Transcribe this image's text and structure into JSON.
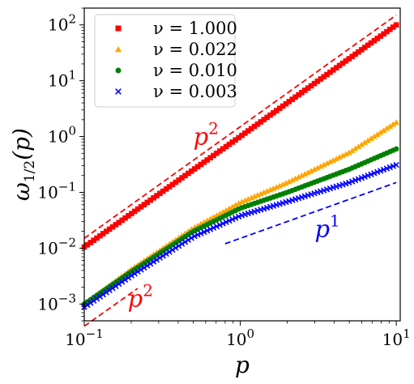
{
  "chart_data": {
    "type": "scatter",
    "xscale": "log",
    "yscale": "log",
    "xlim": [
      0.1,
      10.6
    ],
    "ylim": [
      0.0005,
      200
    ],
    "xlabel": "p",
    "ylabel": "ω1/2(p)",
    "grid": false,
    "legend_position": "top-left",
    "xticks": [
      {
        "value": 0.1,
        "base": "10",
        "exp": "−1"
      },
      {
        "value": 1,
        "base": "10",
        "exp": "0"
      },
      {
        "value": 10,
        "base": "10",
        "exp": "1"
      }
    ],
    "yticks": [
      {
        "value": 0.001,
        "base": "10",
        "exp": "−3"
      },
      {
        "value": 0.01,
        "base": "10",
        "exp": "−2"
      },
      {
        "value": 0.1,
        "base": "10",
        "exp": "−1"
      },
      {
        "value": 1,
        "base": "10",
        "exp": "0"
      },
      {
        "value": 10,
        "base": "10",
        "exp": "1"
      },
      {
        "value": 100,
        "base": "10",
        "exp": "2"
      }
    ],
    "series": [
      {
        "name": "ν = 1.000",
        "color": "#ff0000",
        "marker": "square",
        "n_points": 100,
        "x_range": [
          0.1,
          10
        ],
        "y_anchor": {
          "x": [
            0.1,
            1,
            10
          ],
          "y": [
            0.0105,
            1.0,
            100
          ]
        }
      },
      {
        "name": "ν = 0.022",
        "color": "#ffa500",
        "marker": "triangle",
        "n_points": 100,
        "x_range": [
          0.1,
          10
        ],
        "y_anchor": {
          "x": [
            0.1,
            0.2,
            0.5,
            1,
            2,
            5,
            10
          ],
          "y": [
            0.001,
            0.0042,
            0.023,
            0.066,
            0.15,
            0.52,
            1.8
          ]
        }
      },
      {
        "name": "ν = 0.010",
        "color": "#008000",
        "marker": "circle",
        "n_points": 100,
        "x_range": [
          0.1,
          10
        ],
        "y_anchor": {
          "x": [
            0.1,
            0.2,
            0.5,
            1,
            2,
            5,
            10
          ],
          "y": [
            0.001,
            0.0038,
            0.02,
            0.052,
            0.1,
            0.26,
            0.6
          ]
        }
      },
      {
        "name": "ν = 0.003",
        "color": "#0000ff",
        "marker": "x",
        "n_points": 100,
        "x_range": [
          0.1,
          10
        ],
        "y_anchor": {
          "x": [
            0.1,
            0.2,
            0.5,
            1,
            2,
            5,
            10
          ],
          "y": [
            0.00088,
            0.0032,
            0.016,
            0.038,
            0.068,
            0.15,
            0.31
          ]
        }
      }
    ],
    "reference_lines": [
      {
        "color": "#ff0000",
        "style": "dashed",
        "slope": 2,
        "x": [
          0.1,
          10
        ],
        "y": [
          0.015,
          150
        ]
      },
      {
        "color": "#ff0000",
        "style": "dashed",
        "slope": 2,
        "x": [
          0.1,
          0.22
        ],
        "y": [
          0.0004,
          0.0019
        ]
      },
      {
        "color": "#0000ff",
        "style": "dashed",
        "slope": 1,
        "x": [
          0.8,
          10
        ],
        "y": [
          0.012,
          0.15
        ]
      }
    ],
    "annotations": [
      {
        "base": "p",
        "exp": "2",
        "color": "#ff0000",
        "x": 0.5,
        "y": 0.72
      },
      {
        "base": "p",
        "exp": "2",
        "color": "#ff0000",
        "x": 0.19,
        "y": 0.0009
      },
      {
        "base": "p",
        "exp": "1",
        "color": "#0000ff",
        "x": 3.0,
        "y": 0.016
      }
    ]
  }
}
